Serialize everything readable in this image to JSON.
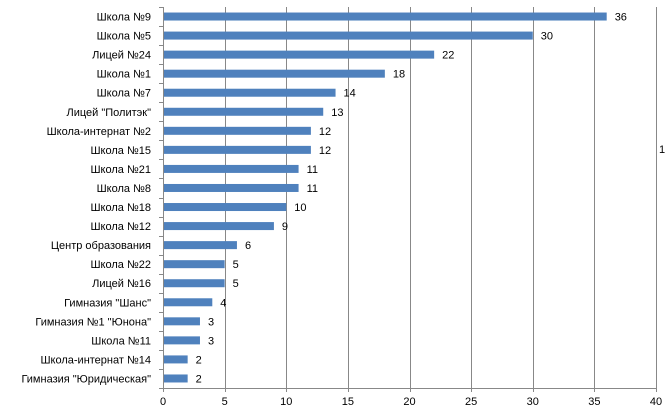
{
  "chart_data": {
    "type": "bar",
    "orientation": "horizontal",
    "categories": [
      "Школа №9",
      "Школа №5",
      "Лицей №24",
      "Школа №1",
      "Школа №7",
      "Лицей \"Политэк\"",
      "Школа-интернат №2",
      "Школа №15",
      "Школа №21",
      "Школа №8",
      "Школа №18",
      "Школа №12",
      "Центр образования",
      "Школа №22",
      "Лицей №16",
      "Гимназия \"Шанс\"",
      "Гимназия №1 \"Юнона\"",
      "Школа №11",
      "Школа-интернат №14",
      "Гимназия \"Юридическая\""
    ],
    "values": [
      36,
      30,
      22,
      18,
      14,
      13,
      12,
      12,
      11,
      11,
      10,
      9,
      6,
      5,
      5,
      4,
      3,
      3,
      2,
      2
    ],
    "xlim": [
      0,
      40
    ],
    "xticks": [
      0,
      5,
      10,
      15,
      20,
      25,
      30,
      35,
      40
    ],
    "grid": true,
    "bar_color": "#4F81BD",
    "grid_color": "#888888",
    "data_labels": true,
    "legend": "none",
    "title": "",
    "xlabel": "",
    "ylabel": ""
  },
  "clipped_edge_text": "1"
}
